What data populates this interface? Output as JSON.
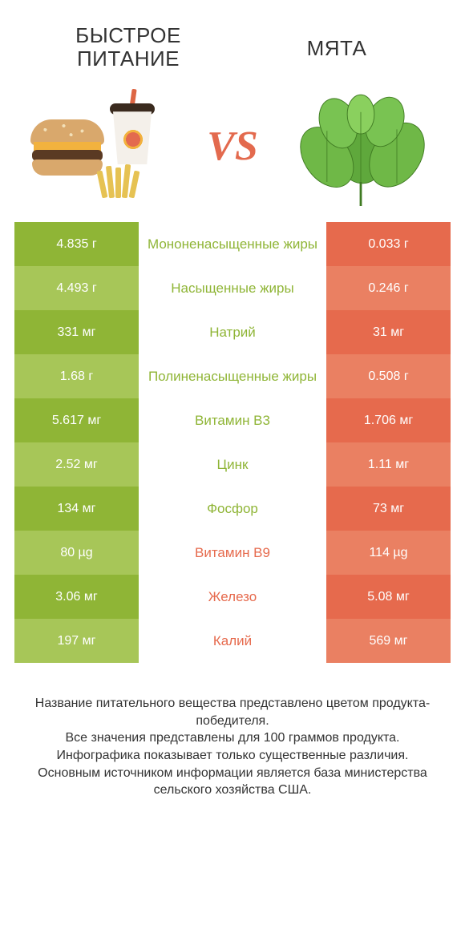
{
  "colors": {
    "green_dark": "#8fb536",
    "green_light": "#a7c658",
    "orange_dark": "#e66a4d",
    "orange_light": "#ea8062",
    "label_green": "#8fb536",
    "label_orange": "#e66a4d",
    "text": "#333333",
    "vs": "#e36a4e"
  },
  "header": {
    "left": "Быстрое питание",
    "right": "мята",
    "vs": "VS"
  },
  "rows": [
    {
      "left": "4.835 г",
      "label": "Мононенасыщенные жиры",
      "right": "0.033 г",
      "winner": "left"
    },
    {
      "left": "4.493 г",
      "label": "Насыщенные жиры",
      "right": "0.246 г",
      "winner": "left"
    },
    {
      "left": "331 мг",
      "label": "Натрий",
      "right": "31 мг",
      "winner": "left"
    },
    {
      "left": "1.68 г",
      "label": "Полиненасыщенные жиры",
      "right": "0.508 г",
      "winner": "left"
    },
    {
      "left": "5.617 мг",
      "label": "Витамин B3",
      "right": "1.706 мг",
      "winner": "left"
    },
    {
      "left": "2.52 мг",
      "label": "Цинк",
      "right": "1.11 мг",
      "winner": "left"
    },
    {
      "left": "134 мг",
      "label": "Фосфор",
      "right": "73 мг",
      "winner": "left"
    },
    {
      "left": "80 µg",
      "label": "Витамин B9",
      "right": "114 µg",
      "winner": "right"
    },
    {
      "left": "3.06 мг",
      "label": "Железо",
      "right": "5.08 мг",
      "winner": "right"
    },
    {
      "left": "197 мг",
      "label": "Калий",
      "right": "569 мг",
      "winner": "right"
    }
  ],
  "footer": {
    "line1": "Название питательного вещества представлено цветом продукта-победителя.",
    "line2": "Все значения представлены для 100 граммов продукта.",
    "line3": "Инфографика показывает только существенные различия.",
    "line4": "Основным источником информации является база министерства сельского хозяйства США."
  },
  "typography": {
    "header_fontsize": 26,
    "value_fontsize": 16,
    "label_fontsize": 17,
    "footer_fontsize": 16,
    "vs_fontsize": 52
  }
}
